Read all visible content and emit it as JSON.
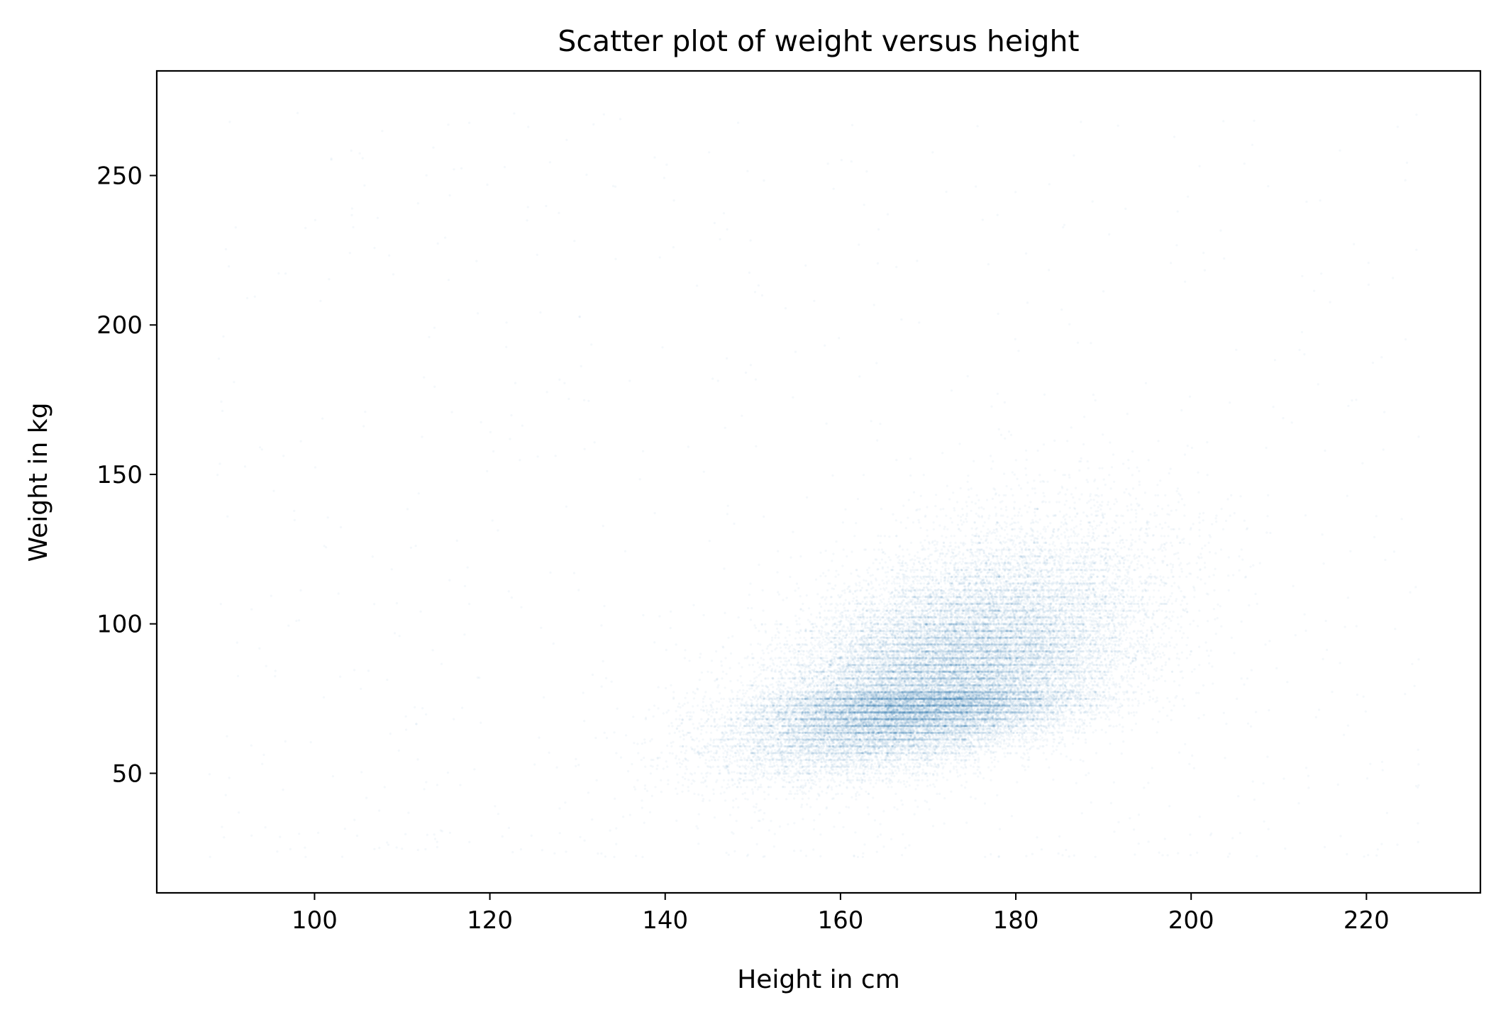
{
  "chart_data": {
    "type": "scatter",
    "title": "Scatter plot of weight versus height",
    "xlabel": "Height in cm",
    "ylabel": "Weight in kg",
    "xlim": [
      82,
      233
    ],
    "ylim": [
      10,
      285
    ],
    "xticks": [
      100,
      120,
      140,
      160,
      180,
      200,
      220
    ],
    "yticks": [
      50,
      100,
      150,
      200,
      250
    ],
    "grid": false,
    "legend": "none",
    "series": [
      {
        "color": "#1f77b4",
        "marker_alpha": 0.05,
        "approx_point_count": 40000,
        "center": {
          "x": 171,
          "y": 77
        },
        "spread": {
          "x_sd": 10.5,
          "y_sd": 19
        },
        "correlation": 0.52,
        "x_range": [
          88,
          226
        ],
        "y_range": [
          22,
          272
        ],
        "dense_region": {
          "x": [
            148,
            195
          ],
          "y": [
            45,
            130
          ]
        }
      }
    ]
  }
}
